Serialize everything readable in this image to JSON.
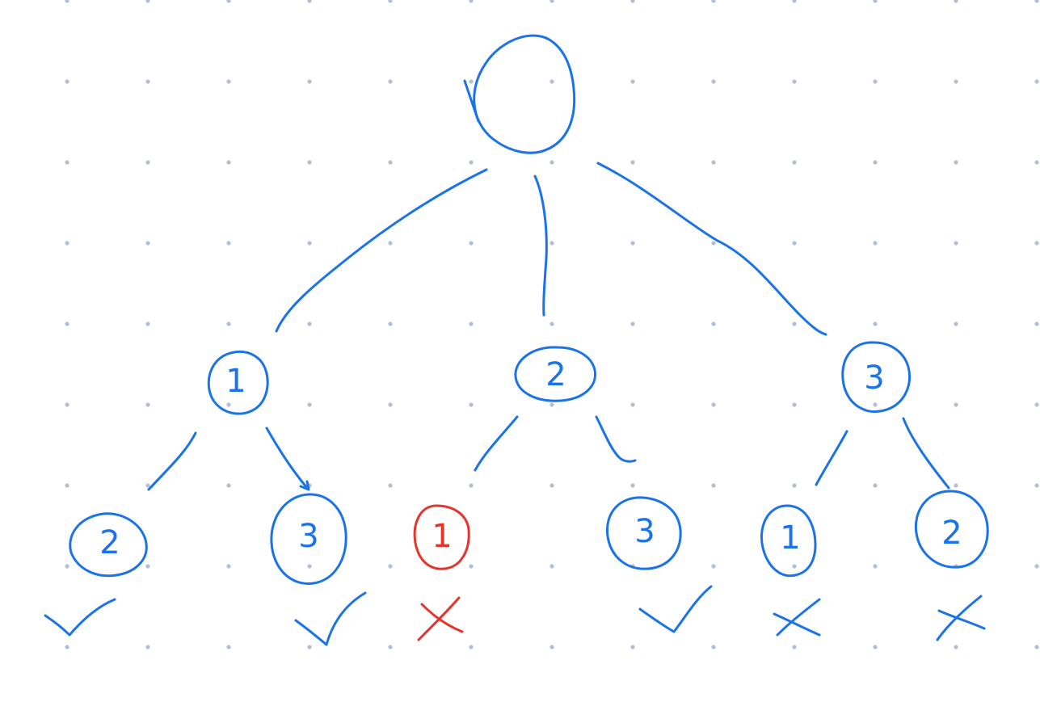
{
  "colors": {
    "ink_blue": "#1a73e8",
    "ink_red": "#e5342c"
  },
  "tree": {
    "root": {
      "label": ""
    },
    "level1": [
      {
        "label": "1"
      },
      {
        "label": "2"
      },
      {
        "label": "3"
      }
    ],
    "level2": [
      {
        "label": "2",
        "mark": "check",
        "status": "valid"
      },
      {
        "label": "3",
        "mark": "check",
        "status": "valid"
      },
      {
        "label": "1",
        "mark": "cross",
        "status": "invalid"
      },
      {
        "label": "3",
        "mark": "check",
        "status": "valid"
      },
      {
        "label": "1",
        "mark": "cross",
        "status": "invalid"
      },
      {
        "label": "2",
        "mark": "cross",
        "status": "invalid"
      }
    ]
  }
}
